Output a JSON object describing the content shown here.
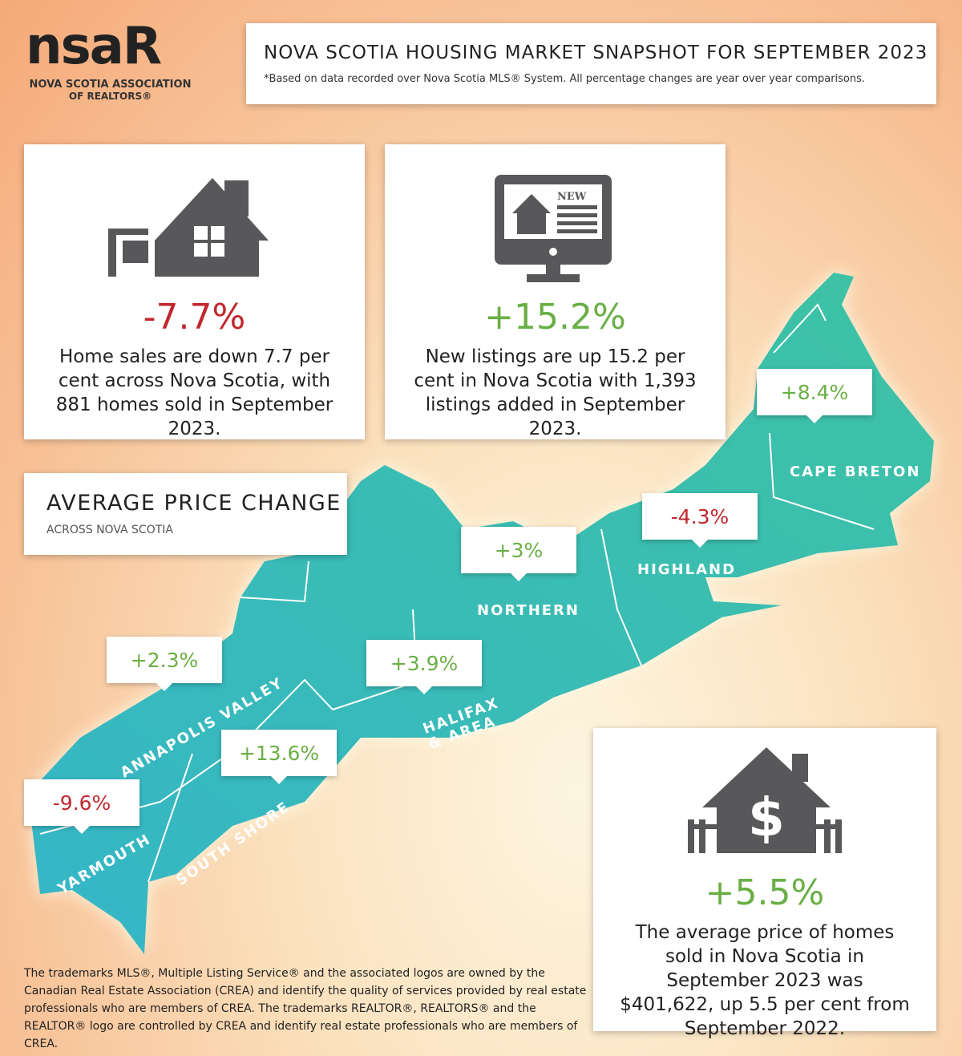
{
  "logo": {
    "wordmark": "nsaR",
    "name_line1": "NOVA SCOTIA ASSOCIATION",
    "name_line2": "OF REALTORS®"
  },
  "header": {
    "title": "NOVA SCOTIA HOUSING MARKET SNAPSHOT FOR SEPTEMBER 2023",
    "note": "*Based on data recorded over Nova Scotia MLS® System. All percentage changes are year over year comparisons."
  },
  "stats": [
    {
      "value": "-7.7%",
      "text": "Home sales are down 7.7 per cent across Nova Scotia, with 881 homes sold in September 2023."
    },
    {
      "value": "+15.2%",
      "text": "New listings are up 15.2 per cent in Nova Scotia with 1,393 listings added in September 2023."
    },
    {
      "value": "+5.5%",
      "text": "The average price of homes sold in Nova Scotia in September 2023 was $401,622, up 5.5 per cent from September 2022."
    }
  ],
  "section": {
    "title": "AVERAGE PRICE CHANGE",
    "subtitle": "ACROSS NOVA SCOTIA"
  },
  "regions": [
    {
      "name": "CAPE BRETON",
      "change": "+8.4%"
    },
    {
      "name": "HIGHLAND",
      "change": "-4.3%"
    },
    {
      "name": "NORTHERN",
      "change": "+3%"
    },
    {
      "name": "HALIFAX & AREA",
      "change": "+3.9%"
    },
    {
      "name": "ANNAPOLIS VALLEY",
      "change": "+2.3%"
    },
    {
      "name": "SOUTH SHORE",
      "change": "+13.6%"
    },
    {
      "name": "YARMOUTH",
      "change": "-9.6%"
    }
  ],
  "footer": {
    "disclaimer": "The trademarks MLS®, Multiple Listing Service® and the associated logos are owned by the Canadian Real Estate Association (CREA) and identify the quality of services provided by real estate professionals who are members of CREA. The trademarks REALTOR®, REALTORS® and the REALTOR® logo are controlled by CREA and identify real estate professionals who are members of CREA."
  }
}
